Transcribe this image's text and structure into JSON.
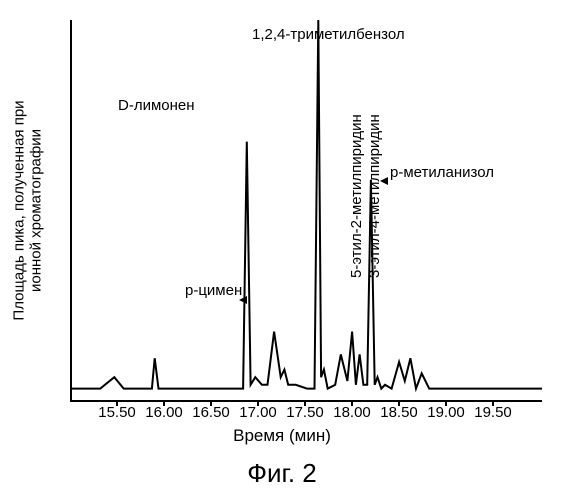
{
  "caption": "Фиг. 2",
  "axes": {
    "xlabel": "Время (мин)",
    "ylabel": "Площадь пика, полученная при\nионной хроматографии",
    "xlim": [
      15.0,
      20.0
    ],
    "ylim": [
      0,
      100
    ],
    "xticks": [
      15.5,
      16.0,
      16.5,
      17.0,
      17.5,
      18.0,
      18.5,
      19.0,
      19.5
    ],
    "xtick_labels": [
      "15.50",
      "16.00",
      "16.50",
      "17.00",
      "17.50",
      "18.00",
      "18.50",
      "19.00",
      "19.50"
    ]
  },
  "peak_labels": {
    "trimethylbenzene": "1,2,4-триметилбензол",
    "d_limonene": "D-лимонен",
    "p_cymene": "p-цимен",
    "ethyl2_methylpyridine": "5-этил-2-метилпиридин",
    "ethyl4_methylpyridine": "3-этил-4-метилпиридин",
    "p_methylanisole": "p-метиланизол"
  },
  "styling": {
    "background_color": "#ffffff",
    "axis_color": "#000000",
    "trace_color": "#000000",
    "trace_width": 2,
    "font_family": "Arial, Helvetica, sans-serif",
    "tick_fontsize": 15,
    "label_fontsize": 17,
    "caption_fontsize": 26,
    "peak_label_fontsize": 15
  },
  "chromatogram": {
    "type": "line",
    "x": [
      15.0,
      15.2,
      15.3,
      15.45,
      15.55,
      15.7,
      15.85,
      15.88,
      15.92,
      16.1,
      16.3,
      16.5,
      16.7,
      16.78,
      16.82,
      16.86,
      16.9,
      16.95,
      17.02,
      17.08,
      17.15,
      17.22,
      17.26,
      17.3,
      17.38,
      17.5,
      17.58,
      17.62,
      17.65,
      17.68,
      17.72,
      17.8,
      17.86,
      17.93,
      17.98,
      18.02,
      18.06,
      18.1,
      18.14,
      18.18,
      18.22,
      18.25,
      18.29,
      18.33,
      18.4,
      18.48,
      18.54,
      18.6,
      18.66,
      18.72,
      18.8,
      18.95,
      19.1,
      19.3,
      19.5,
      19.7,
      19.9,
      20.0
    ],
    "y": [
      3,
      3,
      3,
      6,
      3,
      3,
      3,
      11,
      3,
      3,
      3,
      3,
      3,
      3,
      3,
      68,
      4,
      6,
      4,
      4,
      18,
      6,
      8,
      4,
      4,
      3,
      3,
      100,
      6,
      8,
      3,
      4,
      12,
      5,
      18,
      4,
      12,
      4,
      4,
      58,
      4,
      6,
      3,
      4,
      3,
      10,
      5,
      11,
      3,
      7,
      3,
      3,
      3,
      3,
      3,
      3,
      3,
      3
    ]
  }
}
